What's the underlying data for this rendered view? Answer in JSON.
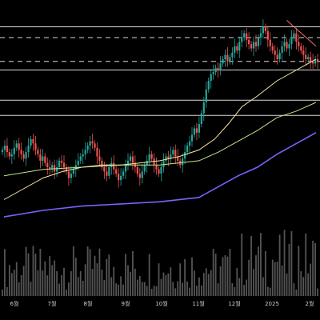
{
  "chart_data": {
    "type": "candlestick",
    "title": "",
    "xlabel": "",
    "ylabel": "",
    "x_tick_labels": [
      "6월",
      "7월",
      "8월",
      "9월",
      "10월",
      "11월",
      "12월",
      "2025",
      "2월"
    ],
    "y_range": [
      0,
      100
    ],
    "colors": {
      "up": "#26a69a",
      "down": "#ef5350",
      "ma_short": "#bfe38a",
      "ma_long": "#7b61ff",
      "trendline": "#ff6b6b",
      "level": "#d9d9d9",
      "volume": "#555555"
    },
    "horizontal_levels": [
      {
        "value": 95,
        "style": "solid"
      },
      {
        "value": 90,
        "style": "dashed"
      },
      {
        "value": 79,
        "style": "dashed"
      },
      {
        "value": 75,
        "style": "solid"
      },
      {
        "value": 61,
        "style": "solid"
      },
      {
        "value": 54,
        "style": "solid"
      }
    ],
    "trendline": {
      "start": [
        145,
        98
      ],
      "end": [
        160,
        86
      ]
    },
    "ma_short": {
      "x": [
        0,
        10,
        20,
        30,
        40,
        50,
        60,
        70,
        80,
        90,
        100,
        108,
        115,
        122,
        130,
        140,
        150,
        160
      ],
      "y": [
        15,
        20,
        25,
        28,
        30,
        31,
        31,
        32,
        33,
        35,
        38,
        43,
        50,
        58,
        63,
        70,
        75,
        80
      ]
    },
    "ma_mid": {
      "x": [
        0,
        20,
        40,
        60,
        80,
        100,
        110,
        120,
        130,
        140,
        150,
        160
      ],
      "y": [
        26,
        29,
        30,
        31,
        31,
        33,
        37,
        42,
        47,
        53,
        56,
        60
      ]
    },
    "ma_long": {
      "x": [
        0,
        20,
        40,
        60,
        80,
        100,
        110,
        120,
        130,
        140,
        150,
        160
      ],
      "y": [
        7,
        10,
        12,
        13,
        14,
        16,
        21,
        26,
        30,
        36,
        41,
        46
      ]
    },
    "ohlc_close": [
      38,
      40,
      37,
      35,
      36,
      39,
      41,
      38,
      36,
      34,
      37,
      40,
      43,
      41,
      38,
      36,
      33,
      35,
      32,
      30,
      29,
      31,
      28,
      30,
      33,
      32,
      30,
      28,
      25,
      27,
      29,
      31,
      33,
      35,
      36,
      38,
      40,
      42,
      41,
      39,
      35,
      33,
      30,
      28,
      26,
      30,
      32,
      29,
      27,
      24,
      26,
      28,
      31,
      33,
      35,
      32,
      30,
      27,
      25,
      28,
      31,
      33,
      36,
      34,
      31,
      29,
      27,
      30,
      33,
      35,
      34,
      36,
      38,
      35,
      33,
      31,
      34,
      37,
      40,
      42,
      45,
      48,
      46,
      50,
      55,
      60,
      66,
      70,
      73,
      74,
      76,
      75,
      78,
      80,
      82,
      79,
      81,
      83,
      86,
      84,
      88,
      90,
      92,
      89,
      87,
      85,
      88,
      86,
      90,
      92,
      95,
      93,
      89,
      86,
      84,
      82,
      80,
      83,
      86,
      88,
      85,
      87,
      90,
      92,
      88,
      86,
      84,
      82,
      80,
      81,
      79,
      78,
      80,
      79
    ]
  }
}
